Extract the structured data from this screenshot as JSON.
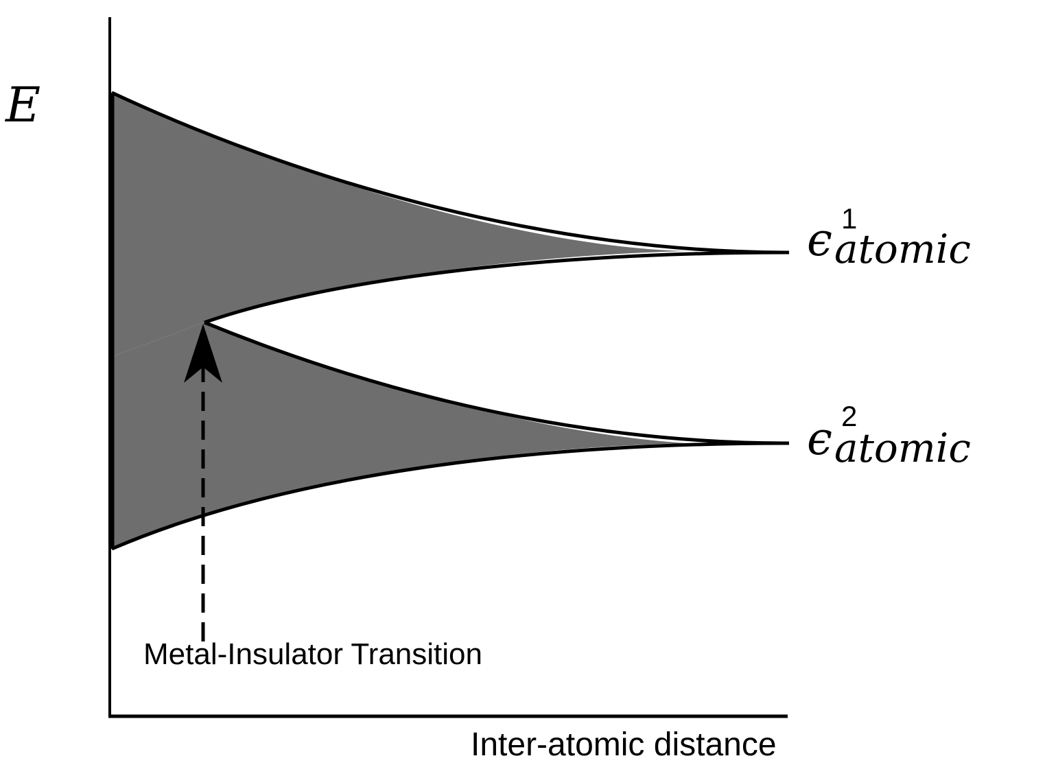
{
  "axes": {
    "y_label": "E",
    "x_label": "Inter-atomic distance"
  },
  "levels": [
    {
      "symbol": "ϵ",
      "superscript": "1",
      "subscript": "atomic"
    },
    {
      "symbol": "ϵ",
      "superscript": "2",
      "subscript": "atomic"
    }
  ],
  "annotation": {
    "label": "Metal-Insulator Transition"
  },
  "colors": {
    "band_fill": "#6e6e6e",
    "line": "#000000",
    "background": "#ffffff"
  }
}
